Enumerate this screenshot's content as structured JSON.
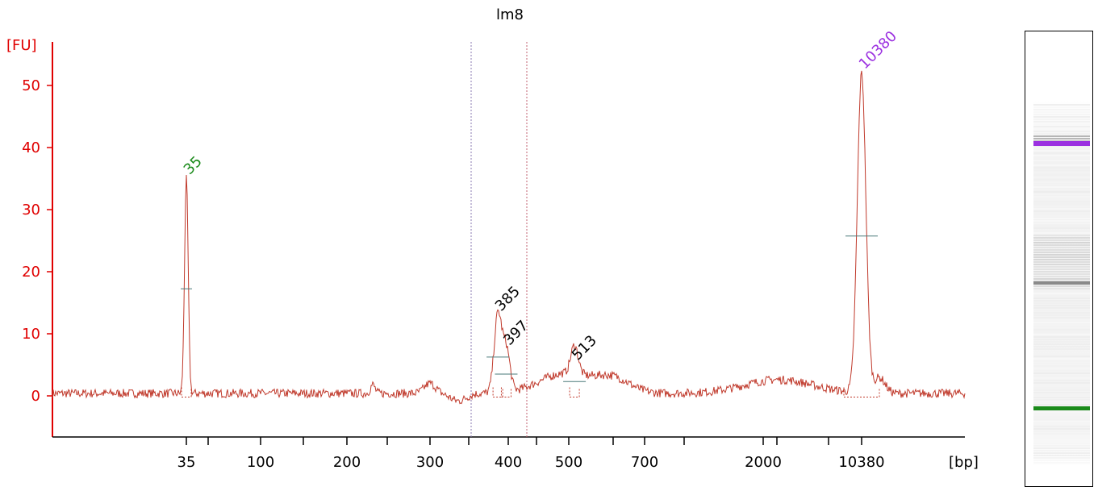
{
  "chart_data": {
    "type": "line",
    "title": "lm8",
    "ylabel": "[FU]",
    "xlabel": "[bp]",
    "ylim": [
      -6.5,
      57
    ],
    "y_ticks": [
      0,
      10,
      20,
      30,
      40,
      50
    ],
    "x_tick_labels": [
      "35",
      "100",
      "200",
      "300",
      "400",
      "500",
      "700",
      "2000",
      "10380"
    ],
    "grid": false,
    "colors": {
      "axis": "#e00000",
      "trace": "#c0392b",
      "lower_marker": "#1a8a1a",
      "upper_marker": "#9b30e0",
      "sample_peak": "#000000",
      "region_line_left": "#8a7ab0",
      "region_line_right": "#c06070"
    },
    "peaks": [
      {
        "label": "35",
        "size_bp": 35,
        "fu": 34.5,
        "kind": "lower-marker"
      },
      {
        "label": "385",
        "size_bp": 385,
        "fu": 12.5,
        "kind": "sample"
      },
      {
        "label": "397",
        "size_bp": 397,
        "fu": 7.0,
        "kind": "sample"
      },
      {
        "label": "513",
        "size_bp": 513,
        "fu": 4.6,
        "kind": "sample"
      },
      {
        "label": "10380",
        "size_bp": 10380,
        "fu": 51.5,
        "kind": "upper-marker"
      }
    ]
  },
  "gel": {
    "lower_marker_color": "#1a8a1a",
    "upper_marker_color": "#9b30e0"
  }
}
